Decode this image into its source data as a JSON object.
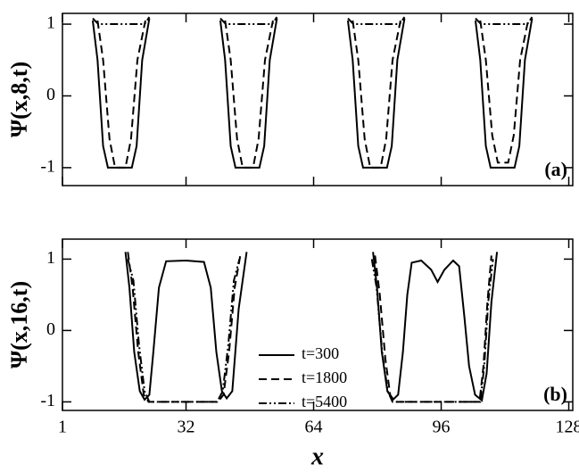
{
  "chart_data": [
    {
      "type": "line",
      "ylabel": "Ψ(x,8,t)",
      "annotation": "(a)",
      "xlim": [
        1,
        129
      ],
      "ylim": [
        -1.25,
        1.15
      ],
      "yticks": [
        -1,
        0,
        1
      ],
      "series": [
        {
          "name": "t=300",
          "color": "#000000",
          "dash": "solid",
          "x": [
            8.6,
            9.8,
            11.2,
            12.4,
            18.4,
            19.6,
            21,
            22.8,
            null,
            40.6,
            41.8,
            43.2,
            44.4,
            50.4,
            51.6,
            53,
            54.8,
            null,
            72.6,
            73.8,
            75.2,
            76.4,
            82.4,
            83.6,
            85,
            86.8,
            null,
            104.6,
            105.8,
            107.2,
            108.4,
            114.4,
            115.6,
            117,
            118.8
          ],
          "values": [
            1.05,
            0.5,
            -0.7,
            -1.0,
            -1.0,
            -0.7,
            0.5,
            1.08,
            null,
            1.05,
            0.5,
            -0.7,
            -1.0,
            -1.0,
            -0.7,
            0.5,
            1.08,
            null,
            1.05,
            0.5,
            -0.7,
            -1.0,
            -1.0,
            -0.7,
            0.5,
            1.08,
            null,
            1.05,
            0.5,
            -0.7,
            -1.0,
            -1.0,
            -0.7,
            0.5,
            1.08
          ]
        },
        {
          "name": "t=1800",
          "color": "#000000",
          "dash": "dashed",
          "x": [
            9.8,
            11.2,
            12.8,
            14.2,
            16.8,
            18.2,
            19.8,
            21.8,
            null,
            41.8,
            43.2,
            44.8,
            46.2,
            48.8,
            50.2,
            51.8,
            53.8,
            null,
            73.8,
            75.2,
            76.8,
            78.2,
            80.8,
            82.2,
            83.8,
            85.8,
            null,
            105.8,
            107.2,
            108.8,
            110.2,
            112.8,
            114.2,
            115.8,
            117.8
          ],
          "values": [
            1.05,
            0.5,
            -0.6,
            -1.0,
            -1.0,
            -0.6,
            0.5,
            1.05,
            null,
            1.05,
            0.5,
            -0.6,
            -1.0,
            -1.0,
            -0.6,
            0.5,
            1.05,
            null,
            1.05,
            0.5,
            -0.6,
            -1.0,
            -1.0,
            -0.6,
            0.5,
            1.05,
            null,
            1.05,
            0.5,
            -0.55,
            -0.93,
            -0.93,
            -0.55,
            0.5,
            1.05
          ]
        },
        {
          "name": "t=5400",
          "color": "#000000",
          "dash": "dashdotdot",
          "x": [
            8.6,
            10,
            21.6,
            22.8,
            null,
            40.6,
            42,
            53.6,
            54.8,
            null,
            72.6,
            74,
            85.6,
            86.8,
            null,
            104.6,
            106,
            117.6,
            118.8
          ],
          "values": [
            1.08,
            1.0,
            1.0,
            1.1,
            null,
            1.08,
            1.0,
            1.0,
            1.1,
            null,
            1.08,
            1.0,
            1.0,
            1.1,
            null,
            1.08,
            1.0,
            1.0,
            1.1
          ]
        }
      ]
    },
    {
      "type": "line",
      "ylabel": "Ψ(x,16,t)",
      "xlabel": "x",
      "annotation": "(b)",
      "xlim": [
        1,
        129
      ],
      "xticks": [
        1,
        32,
        64,
        96,
        128
      ],
      "ylim": [
        -1.12,
        1.28
      ],
      "yticks": [
        -1,
        0,
        1
      ],
      "series": [
        {
          "name": "t=300",
          "color": "#000000",
          "dash": "solid",
          "x": [
            16.8,
            17.8,
            19.0,
            20.4,
            21.6,
            22.8,
            23.8,
            25.2,
            27,
            32,
            36.5,
            38.2,
            39.6,
            41,
            42.2,
            43.6,
            45.2,
            47.2,
            null,
            78.9,
            79.9,
            81.1,
            82.5,
            83.9,
            85.2,
            86.4,
            87.5,
            88.6,
            91,
            93.5,
            95.1,
            96.8,
            99,
            100.5,
            101.8,
            103,
            104.5,
            106.2,
            107.4,
            108.6,
            110
          ],
          "values": [
            1.1,
            0.6,
            -0.3,
            -0.85,
            -0.97,
            -0.9,
            -0.3,
            0.6,
            0.97,
            0.98,
            0.96,
            0.6,
            -0.3,
            -0.85,
            -0.95,
            -0.85,
            0.3,
            1.1,
            null,
            1.1,
            0.6,
            -0.3,
            -0.85,
            -0.97,
            -0.9,
            -0.3,
            0.5,
            0.95,
            0.98,
            0.85,
            0.68,
            0.85,
            0.98,
            0.9,
            0.2,
            -0.5,
            -0.9,
            -0.98,
            -0.6,
            0.4,
            1.1
          ]
        },
        {
          "name": "t=1800",
          "color": "#000000",
          "dash": "dashed",
          "x": [
            17.4,
            18.6,
            20,
            21.4,
            22.6,
            40,
            41.4,
            42.8,
            44.2,
            45.6,
            null,
            79.4,
            80.6,
            82,
            83.2,
            84.4,
            105.6,
            106.6,
            107.6,
            108.6
          ],
          "values": [
            1.1,
            0.6,
            -0.3,
            -0.9,
            -1.0,
            -1.0,
            -0.9,
            -0.3,
            0.6,
            1.05,
            null,
            1.05,
            0.5,
            -0.4,
            -0.9,
            -1.0,
            -1.0,
            -0.5,
            0.4,
            1.05
          ]
        },
        {
          "name": "t=5400",
          "color": "#000000",
          "dash": "dashdotdot",
          "x": [
            17.4,
            18.8,
            20.2,
            21.6,
            22.8,
            39.8,
            41.2,
            42.6,
            44,
            45.4,
            null,
            78.6,
            79.8,
            81.2,
            82.6,
            83.8,
            105.8,
            106.8,
            107.8,
            109
          ],
          "values": [
            1.0,
            0.7,
            -0.2,
            -0.85,
            -1.0,
            -1.0,
            -0.85,
            -0.2,
            0.7,
            1.0,
            null,
            1.0,
            0.6,
            -0.3,
            -0.85,
            -1.0,
            -1.0,
            -0.5,
            0.4,
            1.0
          ]
        }
      ]
    }
  ]
}
